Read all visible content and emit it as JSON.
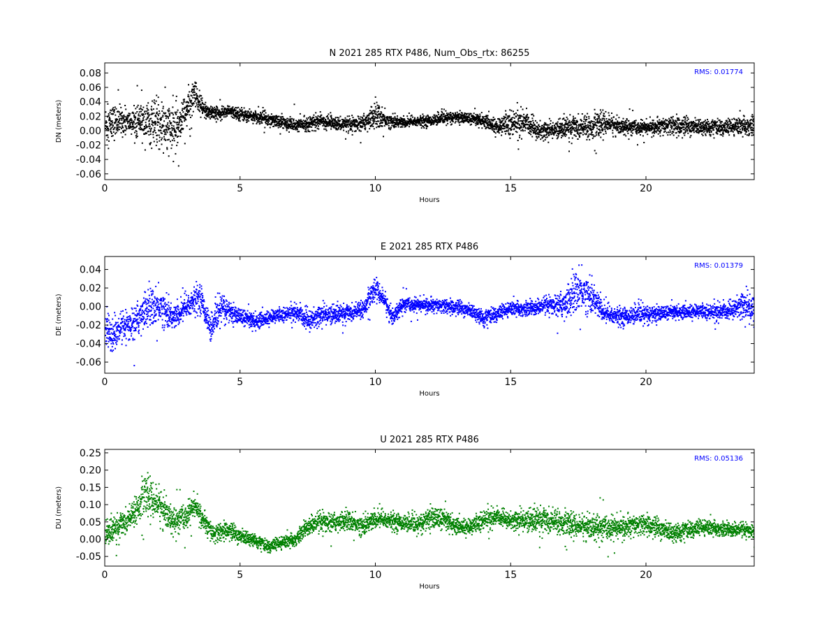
{
  "chart_data": [
    {
      "type": "scatter",
      "title": "N 2021 285 RTX  P486, Num_Obs_rtx: 86255",
      "xlabel": "Hours",
      "ylabel": "DN (meters)",
      "xlim": [
        0,
        24
      ],
      "ylim": [
        -0.068,
        0.094
      ],
      "xticks": [
        "0",
        "5",
        "10",
        "15",
        "20"
      ],
      "yticks": [
        "-0.06",
        "-0.04",
        "-0.02",
        "0.00",
        "0.02",
        "0.04",
        "0.06",
        "0.08"
      ],
      "annotation": "RMS:  0.01774",
      "color": "#000000",
      "grid": false,
      "profile": {
        "x": [
          0,
          0.5,
          1.0,
          1.5,
          2.0,
          2.5,
          3.0,
          3.3,
          3.6,
          4,
          4.5,
          5,
          5.5,
          6,
          7,
          8,
          9,
          9.5,
          10,
          10.5,
          11,
          12,
          13,
          14,
          14.5,
          15,
          15.5,
          16,
          16.5,
          17,
          17.5,
          18,
          18.5,
          19,
          20,
          21,
          22,
          23,
          24
        ],
        "center": [
          0.008,
          0.015,
          0.012,
          0.012,
          0.008,
          0.0,
          0.03,
          0.05,
          0.03,
          0.025,
          0.028,
          0.024,
          0.02,
          0.018,
          0.008,
          0.014,
          0.008,
          0.012,
          0.022,
          0.014,
          0.012,
          0.015,
          0.02,
          0.015,
          0.005,
          0.012,
          0.012,
          0.0,
          0.002,
          0.006,
          0.006,
          0.005,
          0.012,
          0.006,
          0.005,
          0.008,
          0.006,
          0.005,
          0.008
        ],
        "spread": [
          0.03,
          0.022,
          0.016,
          0.03,
          0.04,
          0.036,
          0.025,
          0.025,
          0.016,
          0.01,
          0.008,
          0.01,
          0.009,
          0.01,
          0.01,
          0.01,
          0.01,
          0.012,
          0.02,
          0.01,
          0.008,
          0.008,
          0.008,
          0.01,
          0.012,
          0.02,
          0.016,
          0.016,
          0.012,
          0.016,
          0.018,
          0.018,
          0.018,
          0.012,
          0.01,
          0.014,
          0.012,
          0.012,
          0.014
        ]
      }
    },
    {
      "type": "scatter",
      "title": "E 2021 285 RTX  P486",
      "xlabel": "Hours",
      "ylabel": "DE (meters)",
      "xlim": [
        0,
        24
      ],
      "ylim": [
        -0.072,
        0.054
      ],
      "xticks": [
        "0",
        "5",
        "10",
        "15",
        "20"
      ],
      "yticks": [
        "-0.06",
        "-0.04",
        "-0.02",
        "0.00",
        "0.02",
        "0.04"
      ],
      "annotation": "RMS:  0.01379",
      "color": "#0000ff",
      "grid": false,
      "profile": {
        "x": [
          0,
          0.3,
          0.7,
          1.0,
          1.5,
          2.0,
          2.5,
          3.0,
          3.5,
          3.9,
          4.3,
          4.8,
          5.5,
          6,
          7,
          7.5,
          8,
          9,
          9.5,
          10,
          10.3,
          10.6,
          11,
          12,
          13,
          13.5,
          14,
          15,
          15.5,
          16,
          16.5,
          17,
          17.5,
          18,
          18.5,
          19,
          20,
          21,
          22,
          23,
          23.5,
          24
        ],
        "center": [
          -0.025,
          -0.03,
          -0.022,
          -0.018,
          -0.002,
          0.002,
          -0.012,
          0.0,
          0.012,
          -0.025,
          0.0,
          -0.008,
          -0.015,
          -0.012,
          -0.005,
          -0.015,
          -0.008,
          -0.006,
          -0.003,
          0.02,
          0.008,
          -0.012,
          0.003,
          0.002,
          0.0,
          -0.004,
          -0.012,
          -0.002,
          -0.002,
          0.0,
          0.002,
          0.004,
          0.02,
          0.01,
          -0.008,
          -0.01,
          -0.008,
          -0.005,
          -0.005,
          -0.005,
          0.002,
          -0.002
        ],
        "spread": [
          0.02,
          0.02,
          0.014,
          0.02,
          0.022,
          0.022,
          0.014,
          0.016,
          0.016,
          0.014,
          0.016,
          0.01,
          0.01,
          0.008,
          0.008,
          0.014,
          0.012,
          0.01,
          0.01,
          0.012,
          0.012,
          0.01,
          0.008,
          0.008,
          0.008,
          0.008,
          0.01,
          0.008,
          0.008,
          0.008,
          0.01,
          0.018,
          0.026,
          0.018,
          0.012,
          0.01,
          0.01,
          0.008,
          0.008,
          0.01,
          0.016,
          0.02
        ]
      }
    },
    {
      "type": "scatter",
      "title": "U 2021 285 RTX  P486",
      "xlabel": "Hours",
      "ylabel": "DU (meters)",
      "xlim": [
        0,
        24
      ],
      "ylim": [
        -0.078,
        0.26
      ],
      "xticks": [
        "0",
        "5",
        "10",
        "15",
        "20"
      ],
      "yticks": [
        "-0.05",
        "0.00",
        "0.05",
        "0.10",
        "0.15",
        "0.20",
        "0.25"
      ],
      "annotation": "RMS:  0.05136",
      "color": "#008000",
      "grid": false,
      "profile": {
        "x": [
          0,
          0.5,
          1.0,
          1.5,
          2.0,
          2.5,
          3.0,
          3.3,
          3.7,
          4.0,
          4.5,
          5,
          5.5,
          6,
          6.5,
          7,
          7.5,
          8,
          9,
          9.5,
          10,
          11,
          11.5,
          12,
          12.5,
          13,
          13.5,
          14,
          14.5,
          15,
          16,
          16.5,
          17,
          18,
          19,
          20,
          21,
          22,
          23,
          24
        ],
        "center": [
          0.02,
          0.04,
          0.07,
          0.13,
          0.1,
          0.05,
          0.07,
          0.1,
          0.045,
          0.015,
          0.03,
          0.01,
          0.0,
          -0.02,
          -0.01,
          0.0,
          0.04,
          0.05,
          0.055,
          0.04,
          0.06,
          0.05,
          0.04,
          0.065,
          0.06,
          0.04,
          0.035,
          0.06,
          0.065,
          0.055,
          0.06,
          0.055,
          0.045,
          0.035,
          0.035,
          0.045,
          0.02,
          0.035,
          0.03,
          0.025
        ],
        "spread": [
          0.04,
          0.04,
          0.04,
          0.06,
          0.06,
          0.04,
          0.04,
          0.035,
          0.03,
          0.03,
          0.025,
          0.025,
          0.02,
          0.02,
          0.02,
          0.02,
          0.025,
          0.03,
          0.03,
          0.03,
          0.03,
          0.025,
          0.025,
          0.035,
          0.035,
          0.025,
          0.025,
          0.03,
          0.025,
          0.03,
          0.04,
          0.04,
          0.035,
          0.04,
          0.035,
          0.03,
          0.03,
          0.025,
          0.02,
          0.02
        ]
      }
    }
  ]
}
